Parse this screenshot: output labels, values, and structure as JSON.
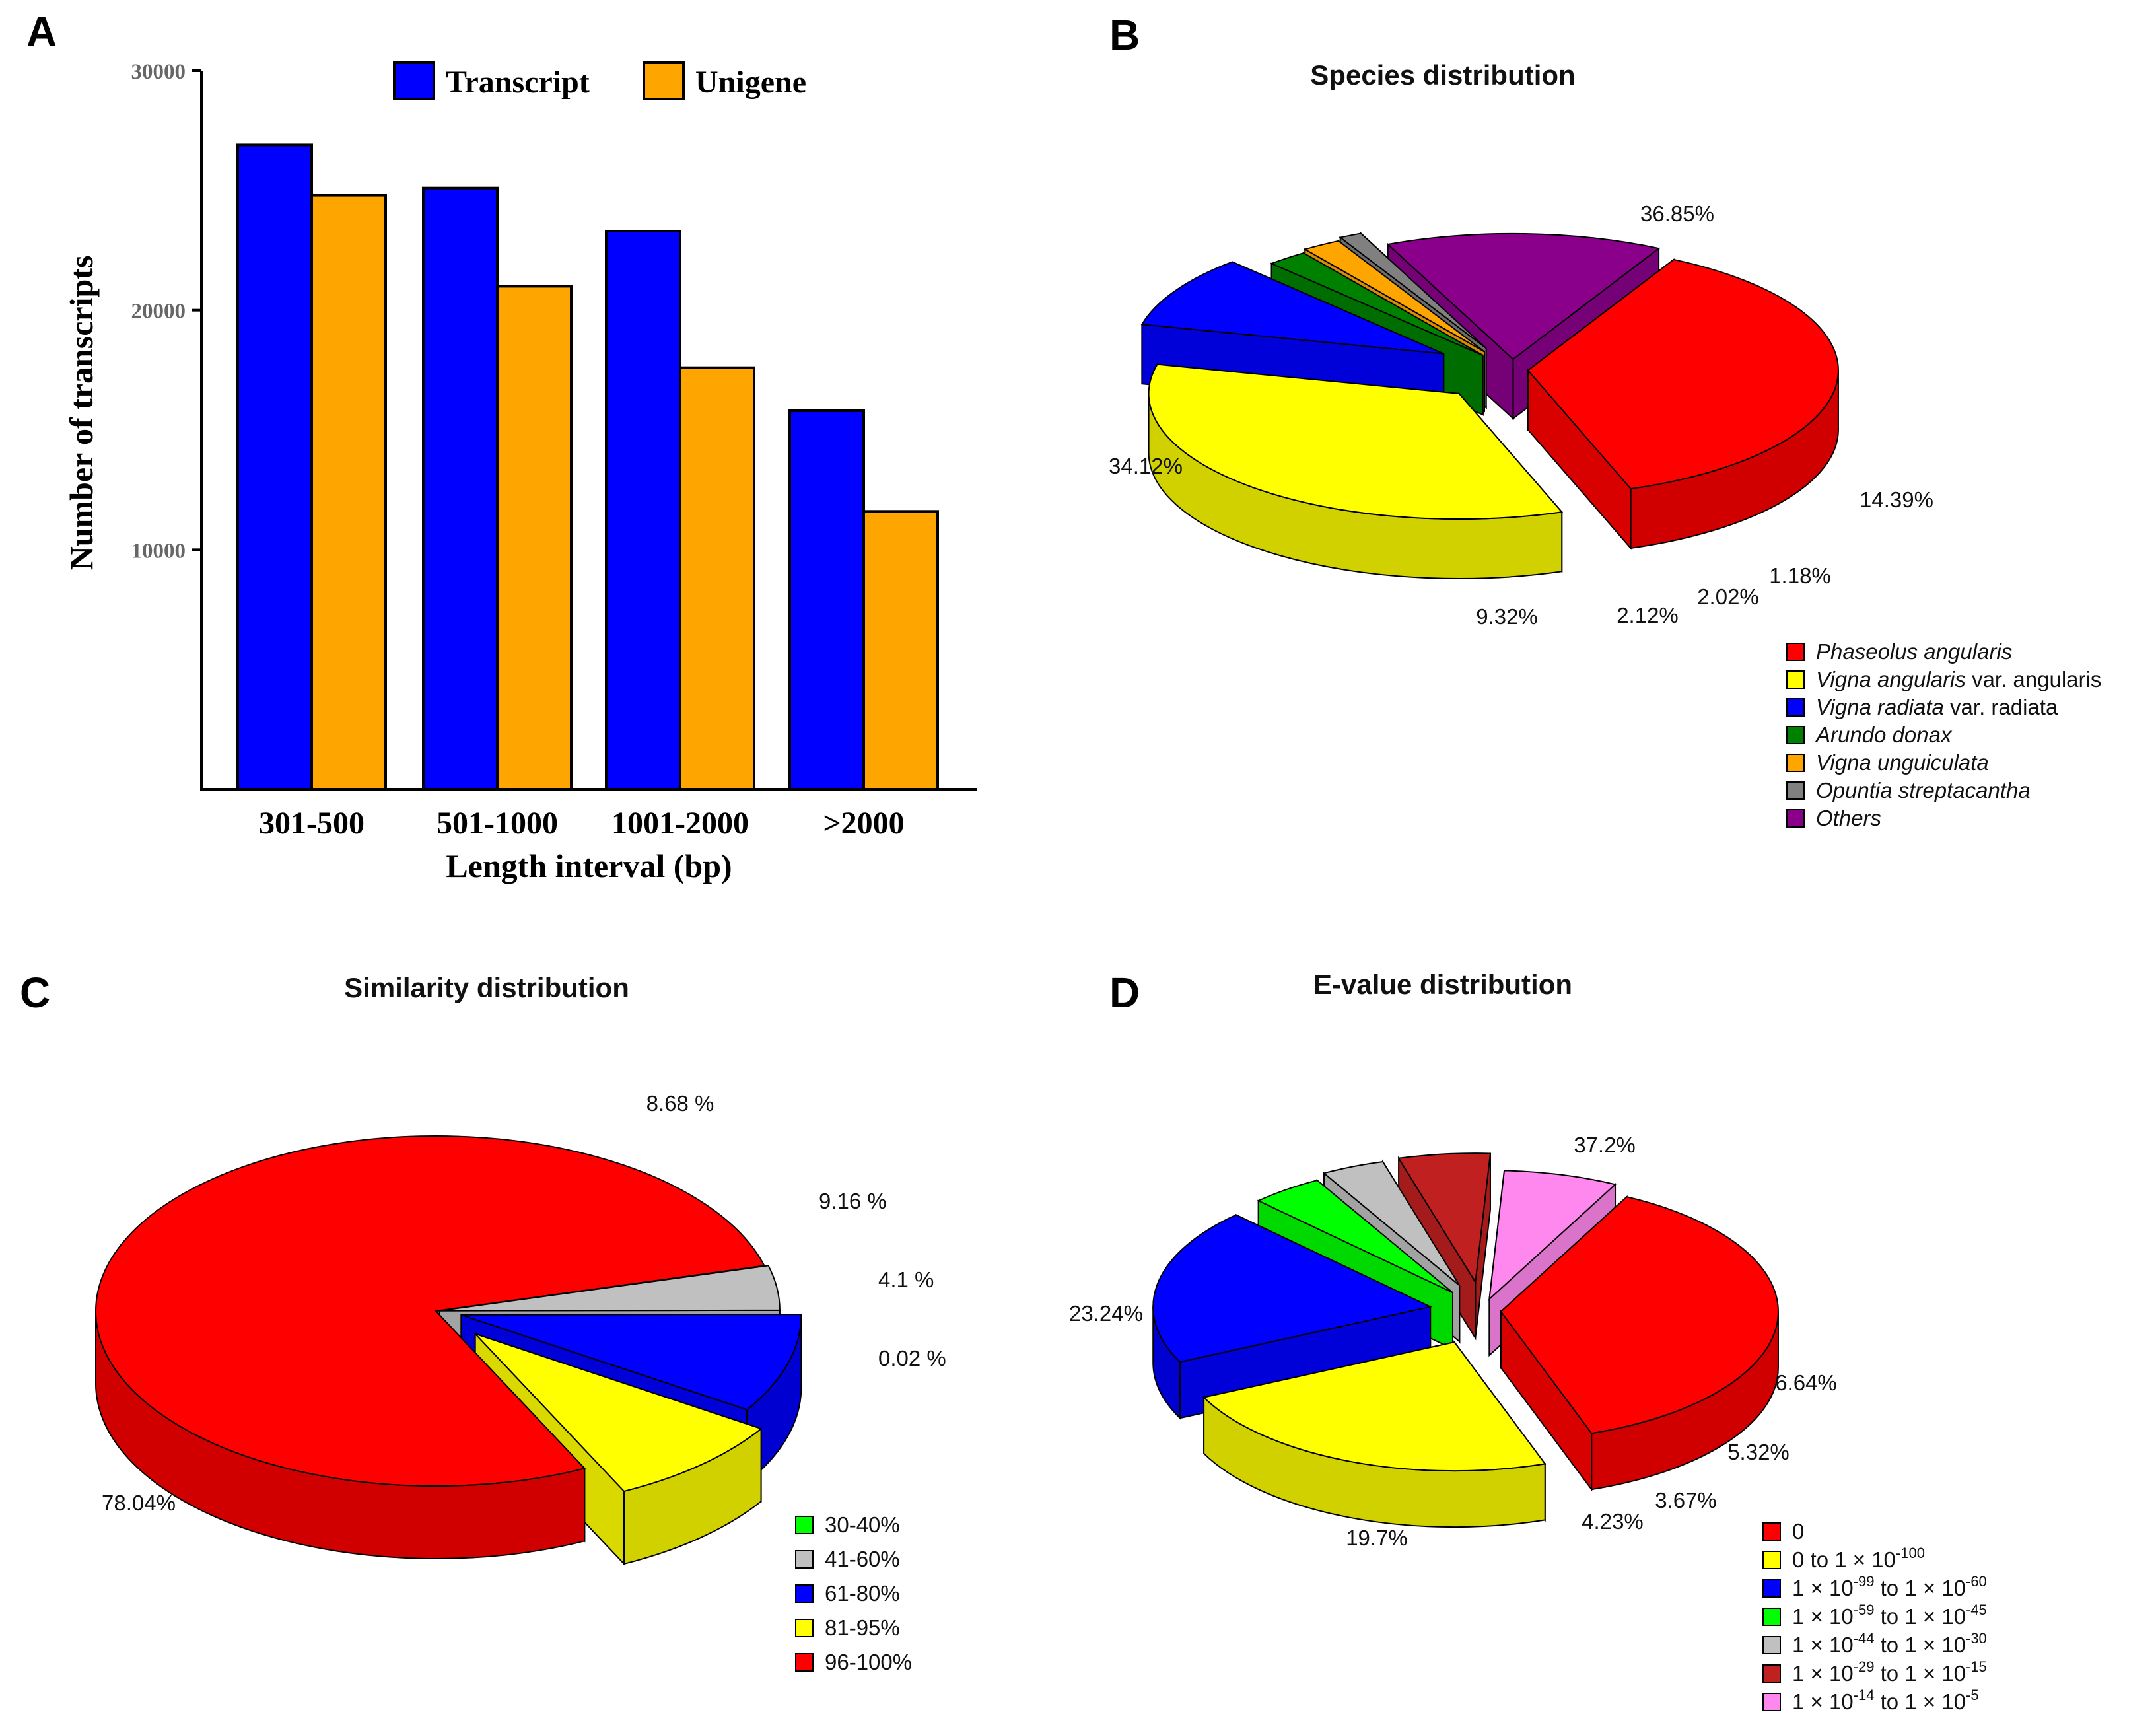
{
  "panels": {
    "a": "A",
    "b": "B",
    "c": "C",
    "d": "D"
  },
  "colors": {
    "transcript": "#0000ff",
    "unigene": "#ffa500",
    "red": "#ff0000",
    "yellow": "#ffff00",
    "blue": "#0000ff",
    "green": "#008000",
    "orange": "#ffa500",
    "gray": "#808080",
    "purple": "#8b008b",
    "lightgreen": "#00ff00",
    "lightgray": "#c0c0c0",
    "darkred": "#c02020",
    "pink": "#ff88ee"
  },
  "chart_data": [
    {
      "type": "bar",
      "xlabel": "Length interval (bp)",
      "ylabel": "Number of transcripts",
      "categories": [
        "301-500",
        "501-1000",
        "1001-2000",
        ">2000"
      ],
      "series": [
        {
          "name": "Transcript",
          "values": [
            26900,
            25100,
            23300,
            15800
          ]
        },
        {
          "name": "Unigene",
          "values": [
            24800,
            21000,
            17600,
            11600
          ]
        }
      ],
      "ylim": [
        0,
        30000
      ],
      "yticks": [
        "10000",
        "20000",
        "30000"
      ],
      "legend": "top"
    },
    {
      "type": "pie",
      "title": "Species distribution",
      "labels": [
        "Phaseolus angularis",
        "Vigna angularis var. angularis",
        "Vigna radiata var. radiata",
        "Arundo donax",
        "Vigna unguiculata",
        "Opuntia streptacantha",
        "Others"
      ],
      "values": [
        36.85,
        34.12,
        9.32,
        2.12,
        2.02,
        1.18,
        14.39
      ],
      "value_labels": [
        "36.85%",
        "34.12%",
        "9.32%",
        "2.12%",
        "2.02%",
        "1.18%",
        "14.39%"
      ],
      "legend_rich": [
        [
          {
            "t": "Phaseolus angularis",
            "i": true
          }
        ],
        [
          {
            "t": "Vigna angularis",
            "i": true
          },
          {
            "t": " var. angularis",
            "i": false
          }
        ],
        [
          {
            "t": "Vigna radiata",
            "i": true
          },
          {
            "t": " var. radiata",
            "i": false
          }
        ],
        [
          {
            "t": "Arundo donax",
            "i": true
          }
        ],
        [
          {
            "t": "Vigna unguiculata",
            "i": true
          }
        ],
        [
          {
            "t": "Opuntia streptacantha",
            "i": true
          }
        ],
        [
          {
            "t": "Others",
            "i": true
          }
        ]
      ],
      "legend": "bottom-right"
    },
    {
      "type": "pie",
      "title": "Similarity distribution",
      "labels": [
        "30-40%",
        "41-60%",
        "61-80%",
        "81-95%",
        "96-100%"
      ],
      "values": [
        0.02,
        4.1,
        9.16,
        8.68,
        78.04
      ],
      "value_labels": [
        "0.02 %",
        "4.1 %",
        "9.16 %",
        "8.68 %",
        "78.04%"
      ],
      "legend": "bottom-right"
    },
    {
      "type": "pie",
      "title": "E-value distribution",
      "labels": [
        "0",
        "0 to 1 × 10-100",
        "1 × 10-99 to 1 × 10-60",
        "1 × 10-59 to 1 × 10-45",
        "1 × 10-44 to 1 × 10-30",
        "1 × 10-29 to 1 × 10-15",
        "1 × 10-14 to 1 × 10-5"
      ],
      "values": [
        37.2,
        23.24,
        19.7,
        4.23,
        3.67,
        5.32,
        6.64
      ],
      "value_labels": [
        "37.2%",
        "23.24%",
        "19.7%",
        "4.23%",
        "3.67%",
        "5.32%",
        "6.64%"
      ],
      "legend_rich": [
        [
          {
            "t": "0"
          }
        ],
        [
          {
            "t": "0 to 1 × 10"
          },
          {
            "t": "-100",
            "sup": true
          }
        ],
        [
          {
            "t": "1 × 10"
          },
          {
            "t": "-99",
            "sup": true
          },
          {
            "t": " to 1 × 10"
          },
          {
            "t": "-60",
            "sup": true
          }
        ],
        [
          {
            "t": "1 × 10"
          },
          {
            "t": "-59",
            "sup": true
          },
          {
            "t": " to 1 × 10"
          },
          {
            "t": "-45",
            "sup": true
          }
        ],
        [
          {
            "t": "1 × 10"
          },
          {
            "t": "-44",
            "sup": true
          },
          {
            "t": " to 1 × 10"
          },
          {
            "t": "-30",
            "sup": true
          }
        ],
        [
          {
            "t": "1 × 10"
          },
          {
            "t": "-29",
            "sup": true
          },
          {
            "t": " to 1 × 10"
          },
          {
            "t": "-15",
            "sup": true
          }
        ],
        [
          {
            "t": "1 × 10"
          },
          {
            "t": "-14",
            "sup": true
          },
          {
            "t": " to 1 × 10"
          },
          {
            "t": "-5",
            "sup": true
          }
        ]
      ],
      "legend": "bottom-right"
    }
  ]
}
